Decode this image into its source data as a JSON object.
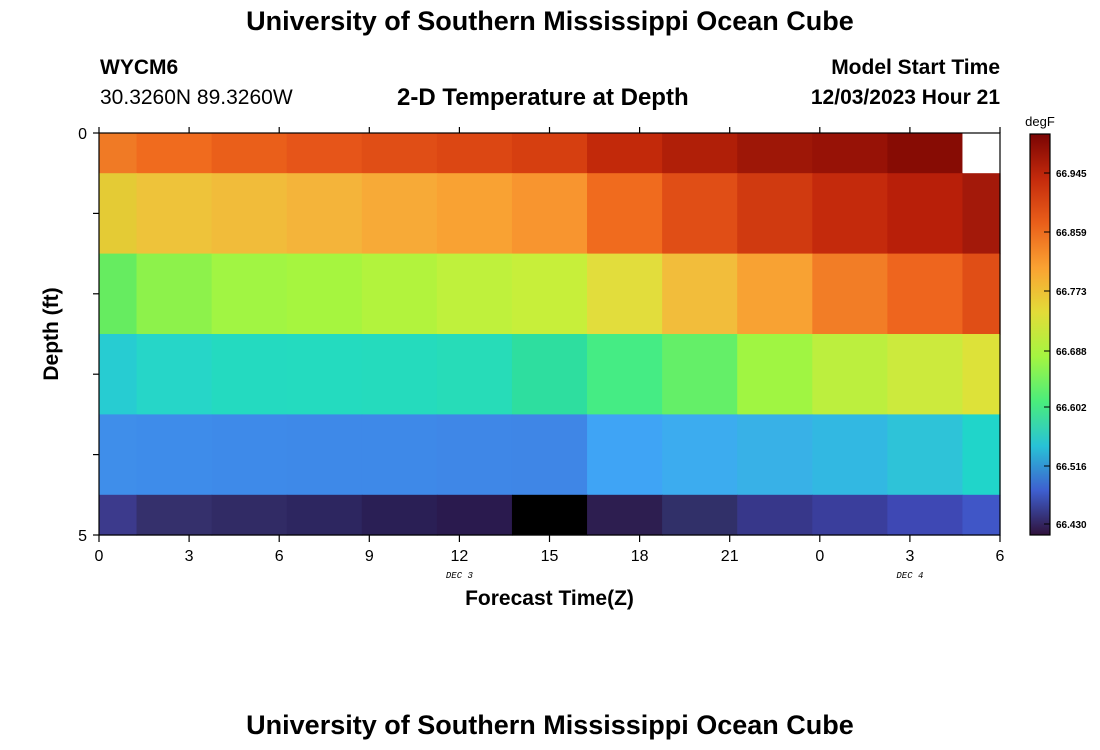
{
  "header": {
    "title": "University of Southern Mississippi Ocean Cube",
    "station_id": "WYCM6",
    "coordinates": "30.3260N  89.3260W",
    "plot_title": "2-D Temperature at Depth",
    "model_start_label": "Model Start Time",
    "model_start_value": "12/03/2023 Hour 21"
  },
  "footer": {
    "title": "University of Southern Mississippi Ocean Cube"
  },
  "chart_data": {
    "type": "heatmap",
    "title": "2-D Temperature at Depth",
    "xlabel": "Forecast Time(Z)",
    "ylabel": "Depth (ft)",
    "x_ticks": [
      "0",
      "3",
      "6",
      "9",
      "12",
      "15",
      "18",
      "21",
      "0",
      "3",
      "6"
    ],
    "x_range_hours": [
      0,
      30
    ],
    "date_labels": [
      {
        "text": "DEC 3",
        "hour": 12
      },
      {
        "text": "DEC 4",
        "hour": 27
      }
    ],
    "y_ticks": [
      "0",
      "5"
    ],
    "ylim": [
      0,
      5
    ],
    "y_inverted": true,
    "colorbar": {
      "unit": "degF",
      "ticks": [
        "66.945",
        "66.859",
        "66.773",
        "66.688",
        "66.602",
        "66.516",
        "66.430"
      ]
    },
    "row_edges": [
      0,
      0.5,
      1.5,
      2.5,
      3.5,
      4.5,
      5
    ],
    "col_edges": [
      0,
      1.25,
      3.75,
      6.25,
      8.75,
      11.25,
      13.75,
      16.25,
      18.75,
      21.25,
      23.75,
      26.25,
      28.75,
      30
    ],
    "cell_colors": [
      [
        "#f07a25",
        "#f06b1e",
        "#ea5f1a",
        "#e65519",
        "#e04e16",
        "#dc4713",
        "#d63f10",
        "#c2290a",
        "#b01f08",
        "#9e1707",
        "#971206",
        "#870c04",
        "#ffffff"
      ],
      [
        "#e4cb35",
        "#eec33a",
        "#f1bc3a",
        "#f4b43a",
        "#f7aa37",
        "#f9a233",
        "#f8952f",
        "#f06b1e",
        "#e04e16",
        "#d03a10",
        "#c42a0c",
        "#b81f09",
        "#a3190a"
      ],
      [
        "#66ec60",
        "#8df24b",
        "#a1f543",
        "#a6f53f",
        "#b2f33d",
        "#bff13c",
        "#c7ef3a",
        "#e2dd3c",
        "#f2bd3b",
        "#f8a233",
        "#f27d26",
        "#ee651e",
        "#e04e16"
      ],
      [
        "#27ccd2",
        "#26d6c8",
        "#24dac0",
        "#24dbbf",
        "#25dbbd",
        "#27dcb8",
        "#2ede9f",
        "#45ec84",
        "#64ef68",
        "#a0f542",
        "#bcef3e",
        "#ccea3d",
        "#dde239"
      ],
      [
        "#3f8eea",
        "#3e8cea",
        "#3e8ae9",
        "#3e89e8",
        "#3e89e8",
        "#3f87e7",
        "#3f86e6",
        "#3fa4f5",
        "#3cacef",
        "#38b1e7",
        "#32b8e2",
        "#2ec3d8",
        "#20d5ca"
      ],
      [
        "#3c3a8c",
        "#35306c",
        "#312b65",
        "#2d2660",
        "#2a1f55",
        "#2a1a4e",
        "#000000",
        "#2d1e50",
        "#313069",
        "#37378a",
        "#3a3e9c",
        "#3e48b4",
        "#4056c7"
      ]
    ]
  }
}
